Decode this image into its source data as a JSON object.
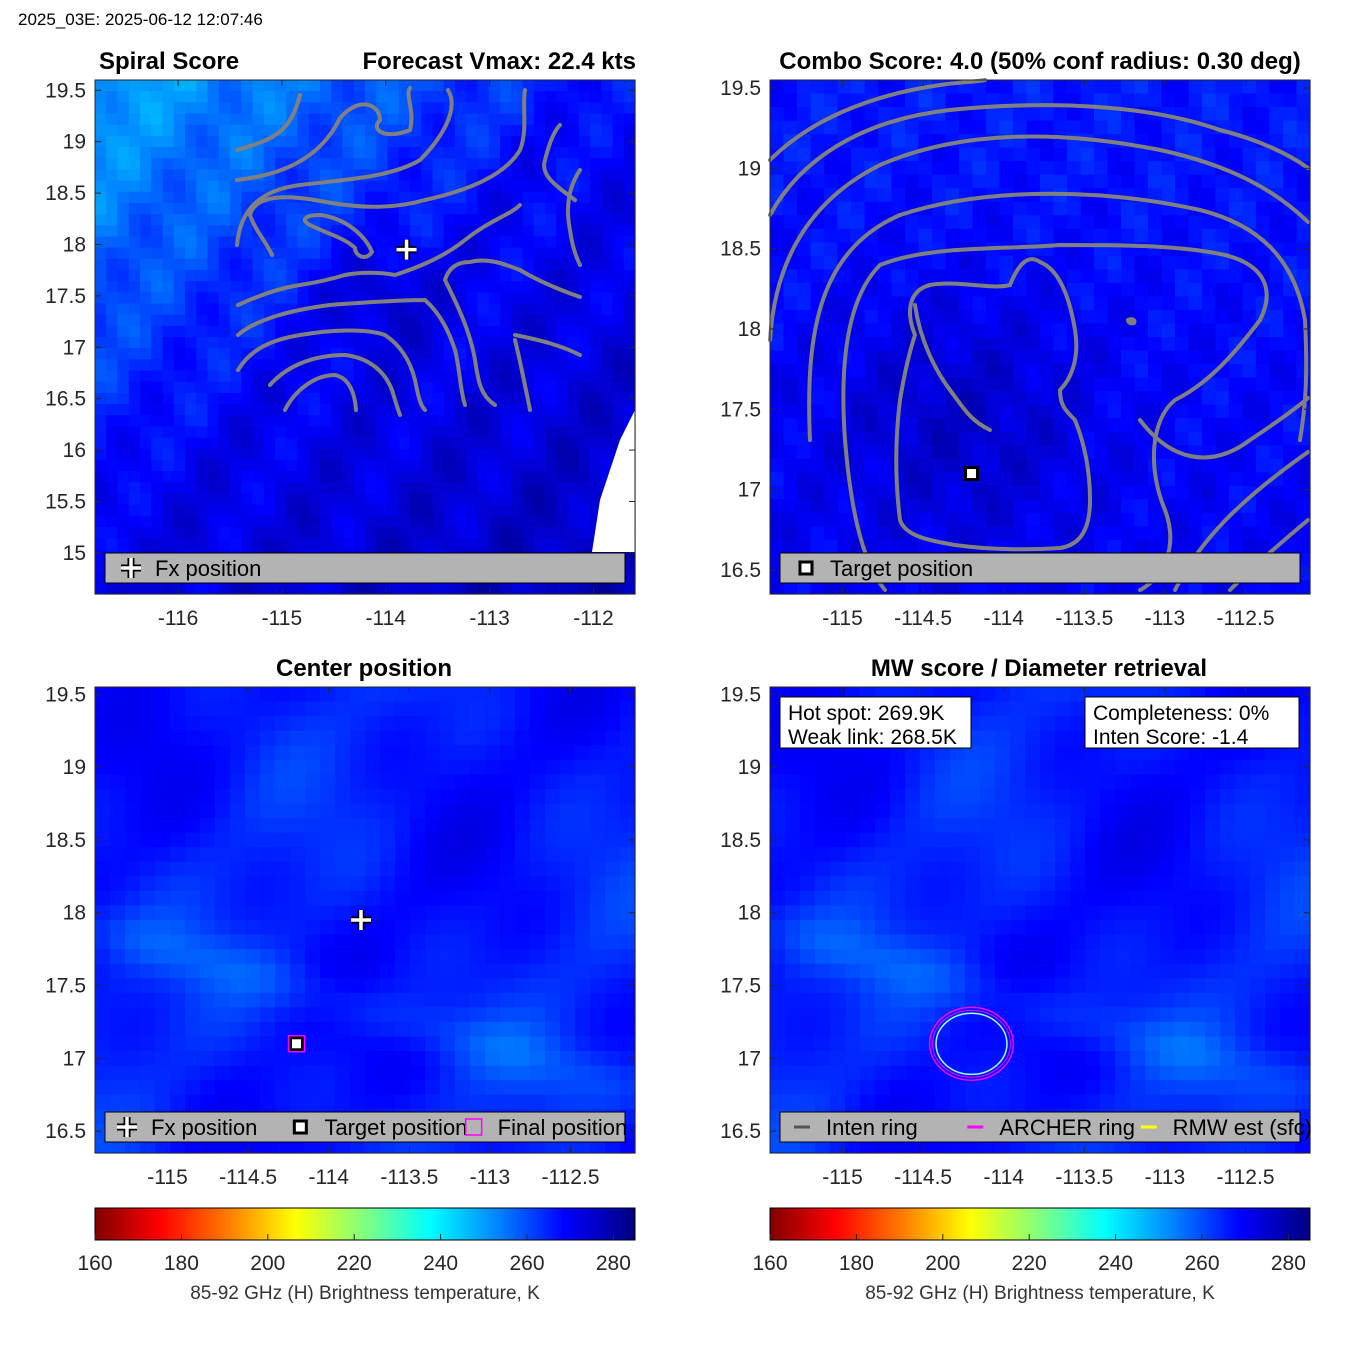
{
  "header": {
    "timestamp": "2025_03E: 2025-06-12 12:07:46"
  },
  "colors": {
    "contour": "#808080",
    "legend_bg": "#b3b3b3",
    "magenta": "#ff00ff",
    "yellow": "#ffff00",
    "cyan": "#a0ffff"
  },
  "colorbar": {
    "ticks": [
      "160",
      "180",
      "200",
      "220",
      "240",
      "260",
      "280"
    ],
    "label": "85-92 GHz (H) Brightness temperature, K",
    "range": [
      160,
      285
    ],
    "colormap": "jet-reversed"
  },
  "chart_data": [
    {
      "id": "spiral",
      "type": "heatmap",
      "title_left": "Spiral Score",
      "title_right": "Forecast Vmax: 22.4 kts",
      "xlim": [
        -116.8,
        -111.6
      ],
      "ylim": [
        14.6,
        19.6
      ],
      "xticks": [
        "-116",
        "-115",
        "-114",
        "-113",
        "-112"
      ],
      "xtick_values": [
        -116,
        -115,
        -114,
        -113,
        -112
      ],
      "yticks": [
        "15",
        "15.5",
        "16",
        "16.5",
        "17",
        "17.5",
        "18",
        "18.5",
        "19",
        "19.5"
      ],
      "ytick_values": [
        15,
        15.5,
        16,
        16.5,
        17,
        17.5,
        18,
        18.5,
        19,
        19.5
      ],
      "markers": [
        {
          "kind": "plus",
          "x": -113.8,
          "y": 17.95
        }
      ],
      "legend": [
        {
          "kind": "plus",
          "label": "Fx position"
        }
      ]
    },
    {
      "id": "combo",
      "type": "heatmap",
      "title": "Combo Score: 4.0  (50% conf radius: 0.30 deg)",
      "xlim": [
        -115.45,
        -112.1
      ],
      "ylim": [
        16.35,
        19.55
      ],
      "xticks": [
        "-115",
        "-114.5",
        "-114",
        "-113.5",
        "-113",
        "-112.5"
      ],
      "xtick_values": [
        -115,
        -114.5,
        -114,
        -113.5,
        -113,
        -112.5
      ],
      "yticks": [
        "16.5",
        "17",
        "17.5",
        "18",
        "18.5",
        "19",
        "19.5"
      ],
      "ytick_values": [
        16.5,
        17,
        17.5,
        18,
        18.5,
        19,
        19.5
      ],
      "markers": [
        {
          "kind": "square",
          "x": -114.2,
          "y": 17.1
        }
      ],
      "legend": [
        {
          "kind": "square",
          "label": "Target position"
        }
      ]
    },
    {
      "id": "center",
      "type": "heatmap",
      "title": "Center position",
      "xlim": [
        -115.45,
        -112.1
      ],
      "ylim": [
        16.35,
        19.55
      ],
      "xticks": [
        "-115",
        "-114.5",
        "-114",
        "-113.5",
        "-113",
        "-112.5"
      ],
      "xtick_values": [
        -115,
        -114.5,
        -114,
        -113.5,
        -113,
        -112.5
      ],
      "yticks": [
        "16.5",
        "17",
        "17.5",
        "18",
        "18.5",
        "19",
        "19.5"
      ],
      "ytick_values": [
        16.5,
        17,
        17.5,
        18,
        18.5,
        19,
        19.5
      ],
      "markers": [
        {
          "kind": "plus",
          "x": -113.8,
          "y": 17.95
        },
        {
          "kind": "square",
          "x": -114.2,
          "y": 17.1
        },
        {
          "kind": "magenta-square",
          "x": -114.2,
          "y": 17.1
        }
      ],
      "legend": [
        {
          "kind": "plus",
          "label": "Fx position"
        },
        {
          "kind": "square",
          "label": "Target position"
        },
        {
          "kind": "magenta-square",
          "label": "Final position"
        }
      ]
    },
    {
      "id": "mw",
      "type": "heatmap",
      "title": "MW score / Diameter retrieval",
      "xlim": [
        -115.45,
        -112.1
      ],
      "ylim": [
        16.35,
        19.55
      ],
      "xticks": [
        "-115",
        "-114.5",
        "-114",
        "-113.5",
        "-113",
        "-112.5"
      ],
      "xtick_values": [
        -115,
        -114.5,
        -114,
        -113.5,
        -113,
        -112.5
      ],
      "yticks": [
        "16.5",
        "17",
        "17.5",
        "18",
        "18.5",
        "19",
        "19.5"
      ],
      "ytick_values": [
        16.5,
        17,
        17.5,
        18,
        18.5,
        19,
        19.5
      ],
      "info_left": [
        "Hot spot: 269.9K",
        "Weak link: 268.5K"
      ],
      "info_right": [
        "Completeness: 0%",
        "Inten Score: -1.4"
      ],
      "rings": [
        {
          "kind": "archer",
          "x": -114.2,
          "y": 17.1,
          "rx": 0.26,
          "ry": 0.25
        },
        {
          "kind": "rmw",
          "x": -114.2,
          "y": 17.1,
          "rx": 0.22,
          "ry": 0.21
        }
      ],
      "legend": [
        {
          "kind": "line-gray",
          "label": "Inten ring"
        },
        {
          "kind": "line-magenta",
          "label": "ARCHER ring"
        },
        {
          "kind": "line-yellow",
          "label": "RMW est (sfc)"
        }
      ]
    }
  ]
}
